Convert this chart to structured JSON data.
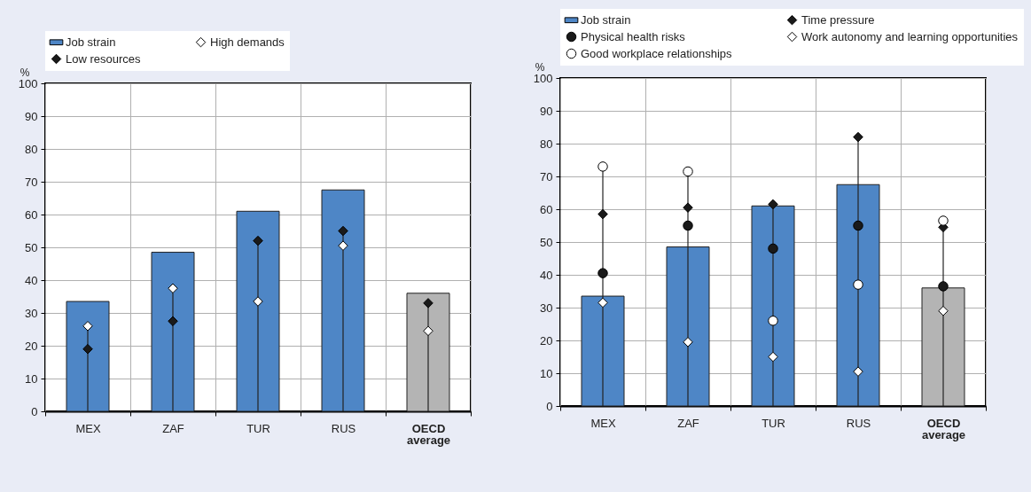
{
  "chart_data": [
    {
      "type": "bar",
      "ylabel": "%",
      "categories": [
        "MEX",
        "ZAF",
        "TUR",
        "RUS",
        "OECD average"
      ],
      "ylim": [
        0,
        100
      ],
      "yticks": [
        0,
        10,
        20,
        30,
        40,
        50,
        60,
        70,
        80,
        90,
        100
      ],
      "grid": true,
      "legend": "top",
      "series": [
        {
          "name": "Job strain",
          "type": "bar",
          "color": "#4e86c6",
          "colors": [
            "#4e86c6",
            "#4e86c6",
            "#4e86c6",
            "#4e86c6",
            "#b4b4b4"
          ],
          "values": [
            33.5,
            48.5,
            61,
            67.5,
            36
          ]
        },
        {
          "name": "High demands",
          "type": "scatter",
          "marker": "diamond",
          "color": "#ffffff",
          "values": [
            26,
            37.5,
            33.5,
            50.5,
            24.5
          ]
        },
        {
          "name": "Low resources",
          "type": "scatter",
          "marker": "diamond",
          "color": "#1a1a1a",
          "values": [
            19,
            27.5,
            52,
            55,
            33
          ]
        }
      ]
    },
    {
      "type": "bar",
      "ylabel": "%",
      "categories": [
        "MEX",
        "ZAF",
        "TUR",
        "RUS",
        "OECD average"
      ],
      "ylim": [
        0,
        100
      ],
      "yticks": [
        0,
        10,
        20,
        30,
        40,
        50,
        60,
        70,
        80,
        90,
        100
      ],
      "grid": true,
      "legend": "top",
      "series": [
        {
          "name": "Job strain",
          "type": "bar",
          "color": "#4e86c6",
          "colors": [
            "#4e86c6",
            "#4e86c6",
            "#4e86c6",
            "#4e86c6",
            "#b4b4b4"
          ],
          "values": [
            33.5,
            48.5,
            61,
            67.5,
            36
          ]
        },
        {
          "name": "Time pressure",
          "type": "scatter",
          "marker": "diamond",
          "color": "#1a1a1a",
          "values": [
            58.5,
            60.5,
            61.5,
            82,
            54.5
          ]
        },
        {
          "name": "Physical health risks",
          "type": "scatter",
          "marker": "circle",
          "color": "#1a1a1a",
          "values": [
            40.5,
            55,
            48,
            55,
            36.5
          ]
        },
        {
          "name": "Work autonomy and learning opportunities",
          "type": "scatter",
          "marker": "diamond",
          "color": "#ffffff",
          "values": [
            31.5,
            19.5,
            15,
            10.5,
            29
          ]
        },
        {
          "name": "Good workplace relationships",
          "type": "scatter",
          "marker": "circle",
          "color": "#ffffff",
          "values": [
            73,
            71.5,
            26,
            37,
            56.5
          ]
        }
      ]
    }
  ]
}
